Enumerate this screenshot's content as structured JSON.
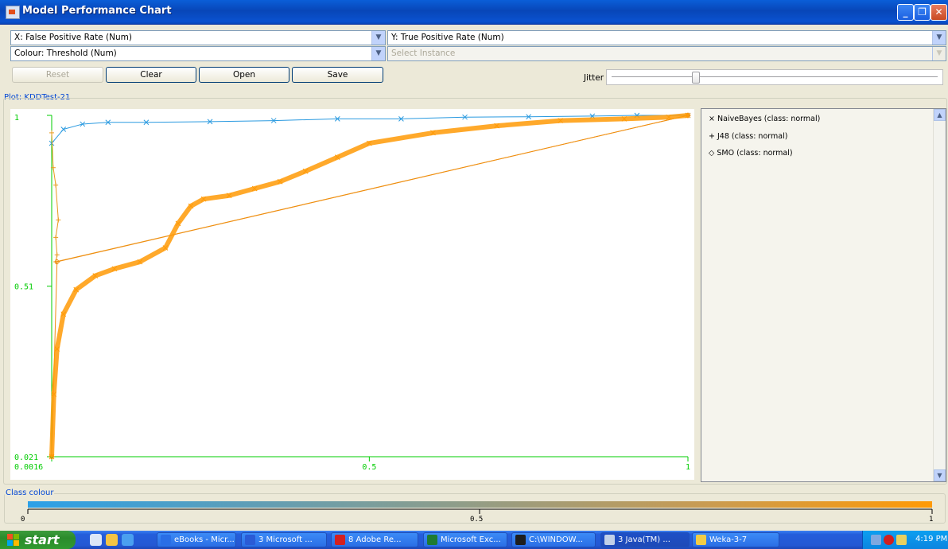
{
  "window": {
    "title": "Model Performance Chart",
    "minimize_glyph": "_",
    "restore_glyph": "❐",
    "close_glyph": "✕"
  },
  "axes": {
    "x_label": "X: False Positive Rate (Num)",
    "y_label": "Y: True Positive Rate (Num)",
    "colour_label": "Colour: Threshold (Num)",
    "instance_placeholder": "Select Instance",
    "arrow_glyph": "▼"
  },
  "buttons": {
    "reset": "Reset",
    "clear": "Clear",
    "open": "Open",
    "save": "Save"
  },
  "jitter": {
    "label": "Jitter",
    "value": 0.25
  },
  "plot": {
    "group_label": "Plot: KDDTest-21"
  },
  "chart_data": {
    "type": "scatter",
    "title": "",
    "xlabel": "False Positive Rate",
    "ylabel": "True Positive Rate",
    "x_ticks": [
      "0.0016",
      "0.5",
      "1"
    ],
    "y_ticks": [
      "1",
      "0.51",
      "0.021"
    ],
    "xlim": [
      0.0016,
      1
    ],
    "ylim": [
      0.021,
      1
    ],
    "colour_scale": {
      "low": "#2ba0e8",
      "high": "#ff9a06"
    },
    "series": [
      {
        "name": "NaiveBayes (class: normal)",
        "marker": "×",
        "color": "#2a9ae0",
        "x": [
          0.0016,
          0.02,
          0.05,
          0.09,
          0.15,
          0.25,
          0.35,
          0.45,
          0.55,
          0.65,
          0.75,
          0.85,
          0.92,
          1.0
        ],
        "y": [
          0.92,
          0.96,
          0.975,
          0.98,
          0.98,
          0.982,
          0.985,
          0.99,
          0.99,
          0.995,
          0.996,
          0.998,
          1.0,
          1.0
        ]
      },
      {
        "name": "J48 (class: normal)",
        "marker": "+",
        "color": "#e89a1c",
        "x": [
          0.0016,
          0.004,
          0.008,
          0.012,
          0.008,
          0.01,
          0.008,
          1.0
        ],
        "y": [
          0.95,
          0.85,
          0.8,
          0.7,
          0.65,
          0.6,
          0.58,
          1.0
        ]
      },
      {
        "name": "SMO (class: normal)",
        "marker": "◇",
        "color": "#f08d10",
        "x": [
          0.0016,
          0.01,
          1.0
        ],
        "y": [
          0.021,
          0.58,
          1.0
        ]
      },
      {
        "name": "",
        "marker": "×",
        "color": "#ff9a06",
        "x": [
          0.0016,
          0.005,
          0.01,
          0.02,
          0.04,
          0.07,
          0.1,
          0.14,
          0.18,
          0.2,
          0.22,
          0.24,
          0.28,
          0.32,
          0.36,
          0.4,
          0.45,
          0.5,
          0.6,
          0.7,
          0.8,
          0.9,
          0.97,
          1.0
        ],
        "y": [
          0.021,
          0.2,
          0.33,
          0.43,
          0.5,
          0.54,
          0.56,
          0.58,
          0.62,
          0.69,
          0.74,
          0.76,
          0.77,
          0.79,
          0.81,
          0.84,
          0.88,
          0.92,
          0.95,
          0.97,
          0.985,
          0.99,
          0.995,
          1.0
        ]
      }
    ],
    "grid": false,
    "legend": "right"
  },
  "legend": {
    "items": [
      {
        "marker": "×",
        "label": "NaiveBayes (class: normal)"
      },
      {
        "marker": "+",
        "label": "J48 (class: normal)"
      },
      {
        "marker": "◇",
        "label": "SMO (class: normal)"
      }
    ],
    "scroll_up": "▲",
    "scroll_down": "▼"
  },
  "class_colour": {
    "label": "Class colour",
    "tick_min": "0",
    "tick_mid": "0.5",
    "tick_max": "1"
  },
  "taskbar": {
    "start": "start",
    "tasks": [
      {
        "label": "eBooks - Micr...",
        "icon_color": "#2a6ee6"
      },
      {
        "label": "3 Microsoft ...",
        "icon_color": "#2a5bd6"
      },
      {
        "label": "8 Adobe Re...",
        "icon_color": "#d42020"
      },
      {
        "label": "Microsoft Exc...",
        "icon_color": "#1e7b32"
      },
      {
        "label": "C:\\WINDOW...",
        "icon_color": "#1e1e1e"
      },
      {
        "label": "3 Java(TM) ...",
        "icon_color": "#c0d0e8"
      },
      {
        "label": "Weka-3-7",
        "icon_color": "#f2cc46"
      }
    ],
    "time": "4:19 PM"
  }
}
